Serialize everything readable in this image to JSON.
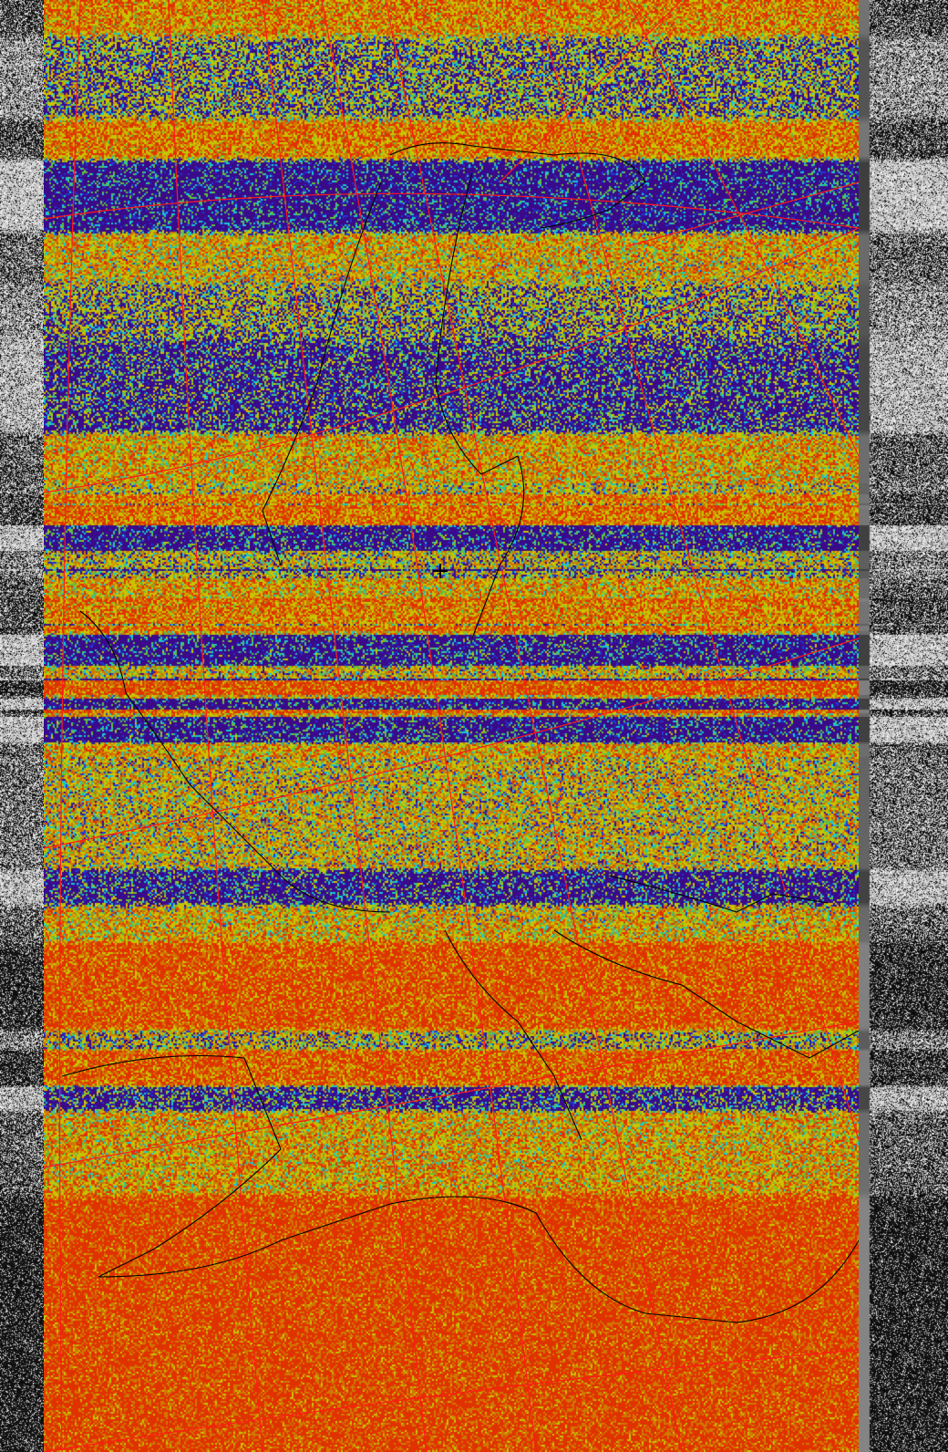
{
  "image": {
    "kind": "satellite-apt-image",
    "palette": [
      "#3a0a8a",
      "#2038d0",
      "#18c8d0",
      "#60c040",
      "#c8c400",
      "#d07800",
      "#e03200"
    ],
    "telemetry_strip_colors": [
      "#000000",
      "#ffffff"
    ],
    "overlay": {
      "graticule_color": "#ff1a1a",
      "coastline_color": "#000000",
      "center_marker": "plus-sign"
    }
  }
}
